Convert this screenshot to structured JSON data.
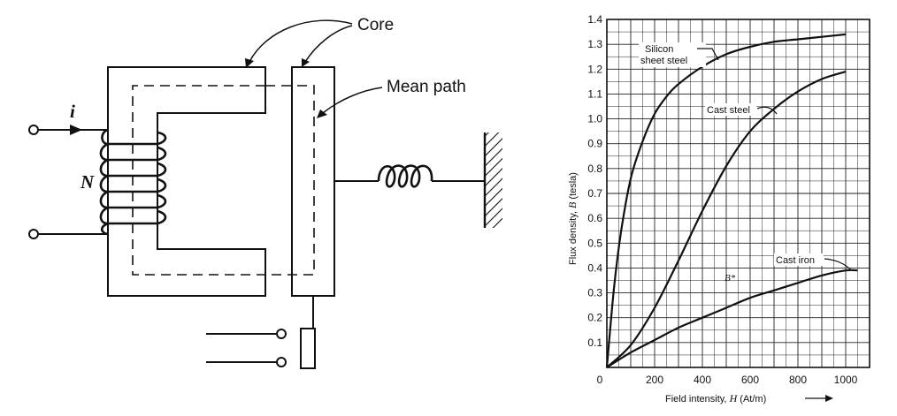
{
  "relay_diagram": {
    "labels": {
      "core": "Core",
      "mean_path": "Mean path",
      "current": "i",
      "turns": "N"
    }
  },
  "bh_chart": {
    "title": "",
    "xlabel_text": "Field intensity, ",
    "xlabel_symbol": "H",
    "xlabel_unit": " (At/m)",
    "ylabel_text": "Flux density, ",
    "ylabel_symbol": "B",
    "ylabel_unit": " (tesla)",
    "point_label": "B*",
    "curve_labels": {
      "silicon_line1": "Silicon",
      "silicon_line2": "sheet steel",
      "cast_steel": "Cast steel",
      "cast_iron": "Cast iron"
    }
  },
  "chart_data": {
    "type": "line",
    "xlabel": "Field intensity, H (At/m)",
    "ylabel": "Flux density, B (tesla)",
    "xlim": [
      0,
      1100
    ],
    "ylim": [
      0,
      1.4
    ],
    "x_ticks": [
      "0",
      "200",
      "400",
      "600",
      "800",
      "1000"
    ],
    "y_ticks": [
      "0.1",
      "0.2",
      "0.3",
      "0.4",
      "0.5",
      "0.6",
      "0.7",
      "0.8",
      "0.9",
      "1.0",
      "1.1",
      "1.2",
      "1.3",
      "1.4"
    ],
    "grid": true,
    "series": [
      {
        "name": "Silicon sheet steel",
        "x": [
          0,
          30,
          60,
          100,
          150,
          200,
          250,
          300,
          400,
          500,
          600,
          700,
          800,
          900,
          1000
        ],
        "y": [
          0,
          0.32,
          0.55,
          0.76,
          0.91,
          1.02,
          1.09,
          1.14,
          1.21,
          1.26,
          1.29,
          1.31,
          1.32,
          1.33,
          1.34
        ]
      },
      {
        "name": "Cast steel",
        "x": [
          0,
          100,
          200,
          300,
          400,
          500,
          600,
          700,
          800,
          900,
          1000
        ],
        "y": [
          0,
          0.09,
          0.24,
          0.43,
          0.63,
          0.81,
          0.95,
          1.04,
          1.11,
          1.16,
          1.19
        ]
      },
      {
        "name": "Cast iron",
        "x": [
          0,
          100,
          200,
          300,
          400,
          500,
          600,
          700,
          800,
          900,
          1000,
          1050
        ],
        "y": [
          0,
          0.06,
          0.11,
          0.16,
          0.2,
          0.24,
          0.28,
          0.31,
          0.34,
          0.37,
          0.39,
          0.39
        ]
      }
    ]
  }
}
